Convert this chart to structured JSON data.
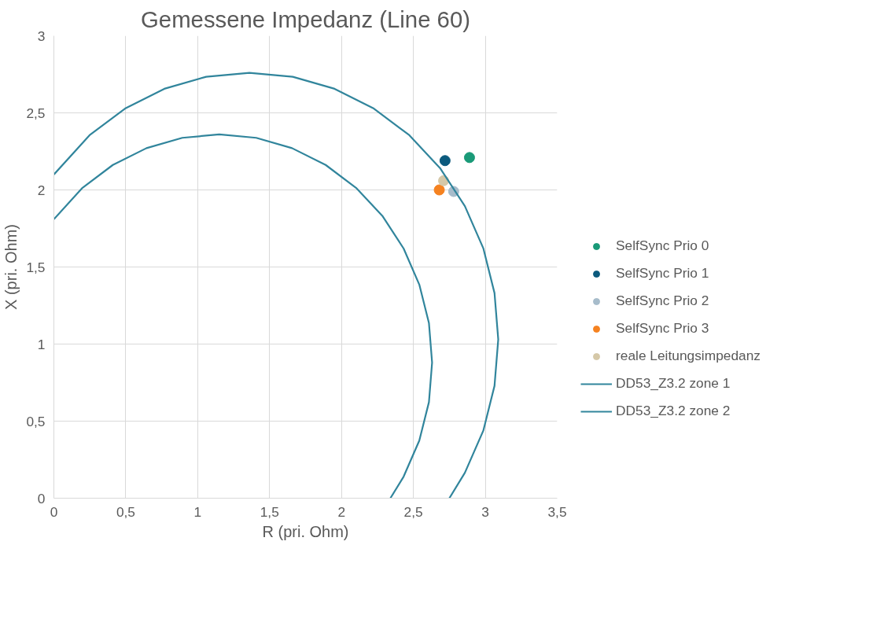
{
  "chart_data": {
    "type": "scatter",
    "title": "Gemessene Impedanz (Line 60)",
    "xlabel": "R (pri. Ohm)",
    "ylabel": "X (pri. Ohm)",
    "xlim": [
      0,
      3.5
    ],
    "ylim": [
      0,
      3
    ],
    "xticks": [
      {
        "value": 0,
        "label": "0"
      },
      {
        "value": 0.5,
        "label": "0,5"
      },
      {
        "value": 1,
        "label": "1"
      },
      {
        "value": 1.5,
        "label": "1,5"
      },
      {
        "value": 2,
        "label": "2"
      },
      {
        "value": 2.5,
        "label": "2,5"
      },
      {
        "value": 3,
        "label": "3"
      },
      {
        "value": 3.5,
        "label": "3,5"
      }
    ],
    "yticks": [
      {
        "value": 0,
        "label": "0"
      },
      {
        "value": 0.5,
        "label": "0,5"
      },
      {
        "value": 1,
        "label": "1"
      },
      {
        "value": 1.5,
        "label": "1,5"
      },
      {
        "value": 2,
        "label": "2"
      },
      {
        "value": 2.5,
        "label": "2,5"
      },
      {
        "value": 3,
        "label": "3"
      }
    ],
    "grid": true,
    "legend": "right",
    "series": [
      {
        "name": "SelfSync Prio 0",
        "color": "#1a9a78",
        "marker": "circle",
        "x": [
          2.89
        ],
        "values": [
          2.21
        ]
      },
      {
        "name": "SelfSync Prio 1",
        "color": "#0b5a7d",
        "marker": "circle",
        "x": [
          2.72
        ],
        "values": [
          2.19
        ]
      },
      {
        "name": "SelfSync Prio 2",
        "color": "#a7bccb",
        "marker": "circle",
        "x": [
          2.78
        ],
        "values": [
          1.99
        ]
      },
      {
        "name": "SelfSync Prio 3",
        "color": "#f58220",
        "marker": "circle",
        "x": [
          2.68
        ],
        "values": [
          2.0
        ]
      },
      {
        "name": "reale Leitungsimpedanz",
        "color": "#d5c8a8",
        "marker": "circle",
        "x": [
          2.71
        ],
        "values": [
          2.06
        ]
      },
      {
        "name": "DD53_Z3.2 zone 1",
        "type": "line",
        "color": "#31859c",
        "line_style": "solid",
        "x": [
          0,
          0.199,
          0.41,
          0.644,
          0.893,
          1.15,
          1.407,
          1.656,
          1.89,
          2.101,
          2.284,
          2.432,
          2.541,
          2.608,
          2.63,
          2.608,
          2.541,
          2.432,
          2.34
        ],
        "values": [
          1.81,
          2.014,
          2.162,
          2.271,
          2.338,
          2.36,
          2.338,
          2.271,
          2.162,
          2.014,
          1.832,
          1.62,
          1.386,
          1.137,
          0.88,
          0.623,
          0.374,
          0.14,
          0
        ]
      },
      {
        "name": "DD53_Z3.2 zone 2",
        "type": "line",
        "color": "#31859c",
        "line_style": "solid",
        "x": [
          0,
          0.248,
          0.495,
          0.768,
          1.059,
          1.36,
          1.661,
          1.952,
          2.225,
          2.472,
          2.685,
          2.858,
          2.986,
          3.064,
          3.09,
          3.064,
          2.986,
          2.858,
          2.75
        ],
        "values": [
          2.1,
          2.355,
          2.528,
          2.656,
          2.734,
          2.76,
          2.734,
          2.656,
          2.528,
          2.355,
          2.142,
          1.895,
          1.622,
          1.331,
          1.03,
          0.729,
          0.438,
          0.165,
          0
        ]
      }
    ]
  }
}
